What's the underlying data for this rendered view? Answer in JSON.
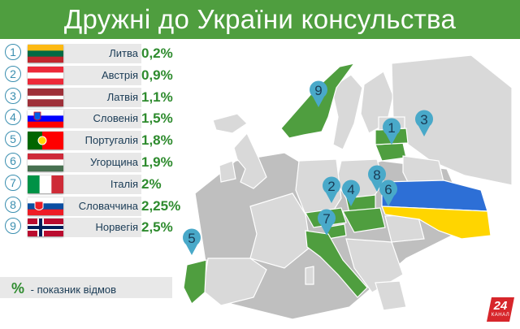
{
  "title": "Дружні до України консульства",
  "chart_data": {
    "type": "table",
    "title": "Дружні до України консульства",
    "columns": [
      "rank",
      "country",
      "refusal_rate"
    ],
    "rows": [
      {
        "rank": "1",
        "country": "Литва",
        "value": 0.2,
        "label": "0,2%"
      },
      {
        "rank": "2",
        "country": "Австрія",
        "value": 0.9,
        "label": "0,9%"
      },
      {
        "rank": "3",
        "country": "Латвія",
        "value": 1.1,
        "label": "1,1%"
      },
      {
        "rank": "4",
        "country": "Словенія",
        "value": 1.5,
        "label": "1,5%"
      },
      {
        "rank": "5",
        "country": "Португалія",
        "value": 1.8,
        "label": "1,8%"
      },
      {
        "rank": "6",
        "country": "Угорщина",
        "value": 1.9,
        "label": "1,9%"
      },
      {
        "rank": "7",
        "country": "Італія",
        "value": 2,
        "label": "2%"
      },
      {
        "rank": "8",
        "country": "Словаччина",
        "value": 2.25,
        "label": "2,25%"
      },
      {
        "rank": "9",
        "country": "Норвегія",
        "value": 2.5,
        "label": "2,5%"
      }
    ],
    "legend": {
      "symbol": "%",
      "text": "- показник відмов"
    },
    "map_markers": [
      "1",
      "2",
      "3",
      "4",
      "5",
      "6",
      "7",
      "8",
      "9"
    ]
  },
  "flags": [
    [
      "#fdb913",
      "#006a44",
      "#c1272d"
    ],
    [
      "#ed2939",
      "#ffffff",
      "#ed2939"
    ],
    [
      "#9e3039",
      "#ffffff",
      "#9e3039"
    ],
    [
      "#ffffff",
      "#0000ff",
      "#ff0000"
    ],
    [
      "#006600",
      "#ff0000"
    ],
    [
      "#ce2939",
      "#ffffff",
      "#477050"
    ],
    [
      "#009246",
      "#ffffff",
      "#ce2b37"
    ],
    [
      "#ffffff",
      "#0b4ea2",
      "#ee1c25"
    ],
    [
      "#ba0c2f",
      "#ffffff",
      "#00205b"
    ]
  ],
  "colors": {
    "title_bar": "#4f9e3f",
    "highlight_country": "#4f9e3f",
    "other_country": "#d9d9d9",
    "marker": "#49a9c9",
    "value_text": "#2e8b2e",
    "ukraine_blue": "#2d6fd6",
    "ukraine_yellow": "#ffd500",
    "logo_bg": "#d7262b"
  },
  "logo": {
    "main": "24",
    "sub": "КАНАЛ"
  },
  "icons": {
    "marker": "map-pin-icon",
    "logo": "channel-24-logo"
  }
}
